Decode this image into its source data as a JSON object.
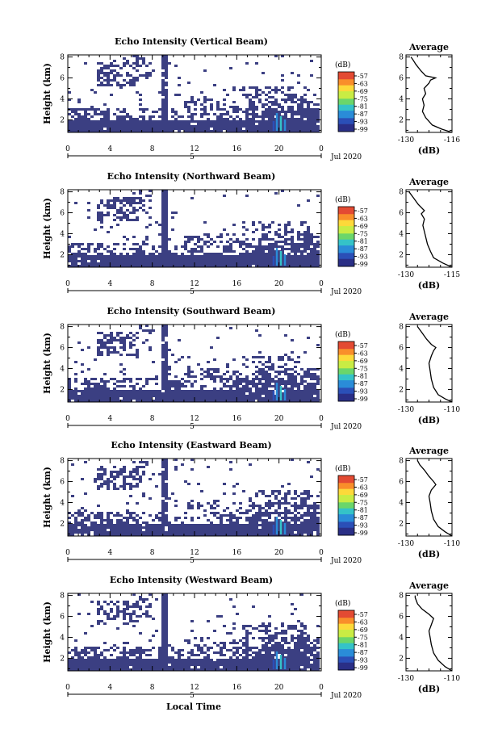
{
  "figure": {
    "xlabel": "Local Time",
    "date_label": "Jul 2020",
    "colorbar_unit": "(dB)",
    "colorbar_ticks": [
      "-57",
      "-63",
      "-69",
      "-75",
      "-81",
      "-87",
      "-93",
      "-99"
    ],
    "colors": {
      "background_echo": "#3b3f82",
      "no_data": "#ffffff",
      "colorbar": [
        "#e34a33",
        "#f98e2b",
        "#fdd93a",
        "#c9ec44",
        "#6bd66a",
        "#35c3c8",
        "#2a8cd8",
        "#2b4fb7",
        "#2a2f86"
      ]
    }
  },
  "chart_data": [
    {
      "type": "heatmap",
      "title": "Echo Intensity (Vertical Beam)",
      "ylabel": "Height (km)",
      "xlabel": "Local Time",
      "x_ticks": [
        "0",
        "4",
        "8",
        "12",
        "16",
        "20",
        "0"
      ],
      "x_sub_label": "5",
      "y_ticks": [
        "2",
        "4",
        "6",
        "8"
      ],
      "profile": {
        "title": "Average",
        "xlabel": "(dB)",
        "x_ticks": [
          "-130",
          "-116"
        ],
        "xlim": [
          -130,
          -116
        ],
        "y_ticks": [
          "2",
          "4",
          "6",
          "8"
        ],
        "points": [
          [
            -116,
            0.8
          ],
          [
            -119,
            1.1
          ],
          [
            -122,
            1.5
          ],
          [
            -124,
            2.2
          ],
          [
            -125,
            2.8
          ],
          [
            -124.5,
            3.4
          ],
          [
            -125,
            4.0
          ],
          [
            -124,
            4.5
          ],
          [
            -124.5,
            5.0
          ],
          [
            -123,
            5.5
          ],
          [
            -122.5,
            5.8
          ],
          [
            -121,
            6.0
          ],
          [
            -124,
            6.2
          ],
          [
            -125.5,
            6.7
          ],
          [
            -127,
            7.3
          ],
          [
            -128,
            7.8
          ],
          [
            -128.5,
            8.0
          ]
        ]
      }
    },
    {
      "type": "heatmap",
      "title": "Echo Intensity (Northward Beam)",
      "ylabel": "Height (km)",
      "xlabel": "Local Time",
      "x_ticks": [
        "0",
        "4",
        "8",
        "12",
        "16",
        "20",
        "0"
      ],
      "x_sub_label": "5",
      "y_ticks": [
        "2",
        "4",
        "6",
        "8"
      ],
      "profile": {
        "title": "Average",
        "xlabel": "(dB)",
        "x_ticks": [
          "-130",
          "-115"
        ],
        "xlim": [
          -130,
          -115
        ],
        "y_ticks": [
          "2",
          "4",
          "6",
          "8"
        ],
        "points": [
          [
            -115,
            0.8
          ],
          [
            -118,
            1.2
          ],
          [
            -121,
            1.7
          ],
          [
            -122,
            2.3
          ],
          [
            -123,
            3.0
          ],
          [
            -123.5,
            3.6
          ],
          [
            -124,
            4.2
          ],
          [
            -124.5,
            4.8
          ],
          [
            -124,
            5.4
          ],
          [
            -125,
            5.9
          ],
          [
            -124,
            6.2
          ],
          [
            -126,
            6.8
          ],
          [
            -127.5,
            7.4
          ],
          [
            -129,
            8.0
          ]
        ]
      }
    },
    {
      "type": "heatmap",
      "title": "Echo Intensity (Southward Beam)",
      "ylabel": "Height (km)",
      "xlabel": "Local Time",
      "x_ticks": [
        "0",
        "4",
        "8",
        "12",
        "16",
        "20",
        "0"
      ],
      "x_sub_label": "5",
      "y_ticks": [
        "2",
        "4",
        "6",
        "8"
      ],
      "profile": {
        "title": "Average",
        "xlabel": "(dB)",
        "x_ticks": [
          "-130",
          "-110"
        ],
        "xlim": [
          -130,
          -110
        ],
        "y_ticks": [
          "2",
          "4",
          "6",
          "8"
        ],
        "points": [
          [
            -110,
            0.8
          ],
          [
            -113,
            1.1
          ],
          [
            -116,
            1.5
          ],
          [
            -118,
            2.2
          ],
          [
            -119,
            3.0
          ],
          [
            -119.5,
            3.8
          ],
          [
            -120,
            4.5
          ],
          [
            -119,
            5.2
          ],
          [
            -118,
            5.7
          ],
          [
            -117,
            6.0
          ],
          [
            -119,
            6.3
          ],
          [
            -121,
            6.8
          ],
          [
            -123,
            7.4
          ],
          [
            -125,
            8.0
          ]
        ]
      }
    },
    {
      "type": "heatmap",
      "title": "Echo Intensity (Eastward Beam)",
      "ylabel": "Height (km)",
      "xlabel": "Local Time",
      "x_ticks": [
        "0",
        "4",
        "8",
        "12",
        "16",
        "20",
        "0"
      ],
      "x_sub_label": "5",
      "y_ticks": [
        "2",
        "4",
        "6",
        "8"
      ],
      "profile": {
        "title": "Average",
        "xlabel": "(dB)",
        "x_ticks": [
          "-130",
          "-110"
        ],
        "xlim": [
          -130,
          -110
        ],
        "y_ticks": [
          "2",
          "4",
          "6",
          "8"
        ],
        "points": [
          [
            -110,
            0.8
          ],
          [
            -113,
            1.2
          ],
          [
            -116,
            1.7
          ],
          [
            -118,
            2.4
          ],
          [
            -119,
            3.2
          ],
          [
            -119.5,
            4.0
          ],
          [
            -120,
            4.6
          ],
          [
            -119,
            5.2
          ],
          [
            -117,
            5.7
          ],
          [
            -118,
            6.0
          ],
          [
            -120,
            6.5
          ],
          [
            -122,
            7.1
          ],
          [
            -124,
            7.6
          ],
          [
            -125,
            8.0
          ]
        ]
      }
    },
    {
      "type": "heatmap",
      "title": "Echo Intensity (Westward Beam)",
      "ylabel": "Height (km)",
      "xlabel": "Local Time",
      "x_ticks": [
        "0",
        "4",
        "8",
        "12",
        "16",
        "20",
        "0"
      ],
      "x_sub_label": "5",
      "y_ticks": [
        "2",
        "4",
        "6",
        "8"
      ],
      "profile": {
        "title": "Average",
        "xlabel": "(dB)",
        "x_ticks": [
          "-130",
          "-110"
        ],
        "xlim": [
          -130,
          -110
        ],
        "y_ticks": [
          "2",
          "4",
          "6",
          "8"
        ],
        "points": [
          [
            -110,
            0.8
          ],
          [
            -113,
            1.2
          ],
          [
            -116,
            1.8
          ],
          [
            -118,
            2.5
          ],
          [
            -119,
            3.3
          ],
          [
            -119.5,
            4.0
          ],
          [
            -120,
            4.6
          ],
          [
            -119,
            5.2
          ],
          [
            -118,
            5.8
          ],
          [
            -120,
            6.2
          ],
          [
            -123,
            6.7
          ],
          [
            -125,
            7.2
          ],
          [
            -126,
            7.8
          ],
          [
            -126,
            8.0
          ]
        ]
      }
    }
  ]
}
